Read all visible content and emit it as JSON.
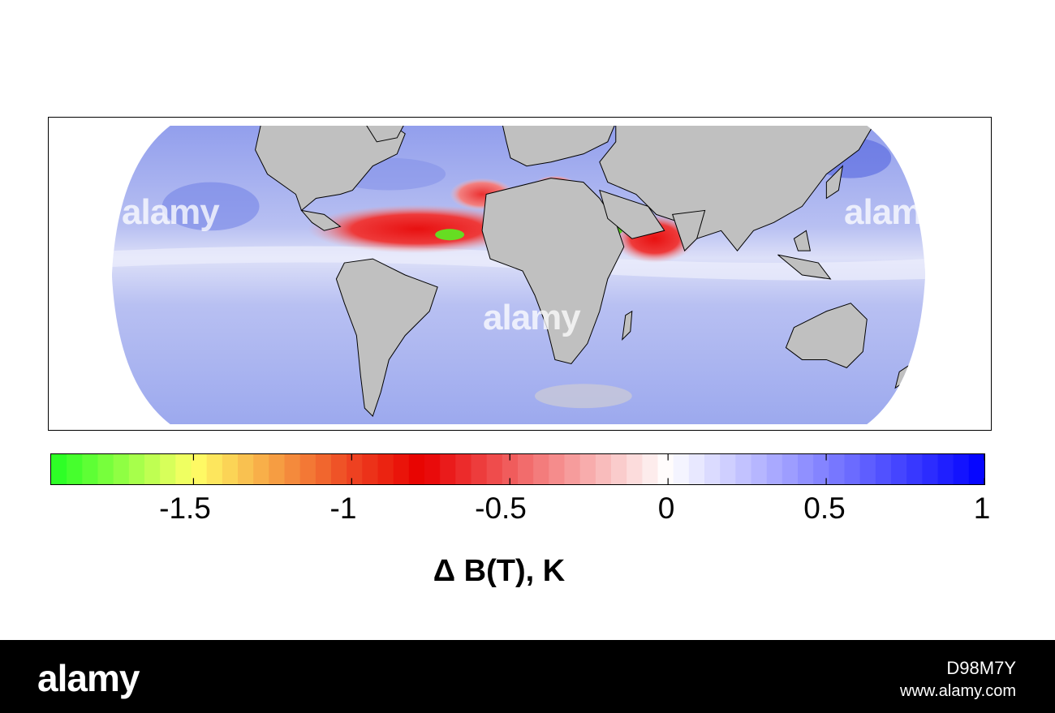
{
  "colorbar": {
    "ticks": [
      "-1.5",
      "-1",
      "-0.5",
      "0",
      "0.5",
      "1"
    ],
    "title": "Δ B(T), K",
    "min": -1.95,
    "max": 1,
    "colors": {
      "min": "#22ff22",
      "low": "#ffff66",
      "mid_low": "#ee4422",
      "mid": "#e80000",
      "zero": "#ffffff",
      "high": "#0000ff"
    }
  },
  "map": {
    "land_color": "#c0c0c0",
    "ocean_background": "#a9b4f0",
    "anomaly_region": "tropical Atlantic / Arabian Sea"
  },
  "watermarks": {
    "text": "alamy"
  },
  "footer": {
    "logo": "alamy",
    "image_id": "D98M7Y",
    "url": "www.alamy.com"
  }
}
